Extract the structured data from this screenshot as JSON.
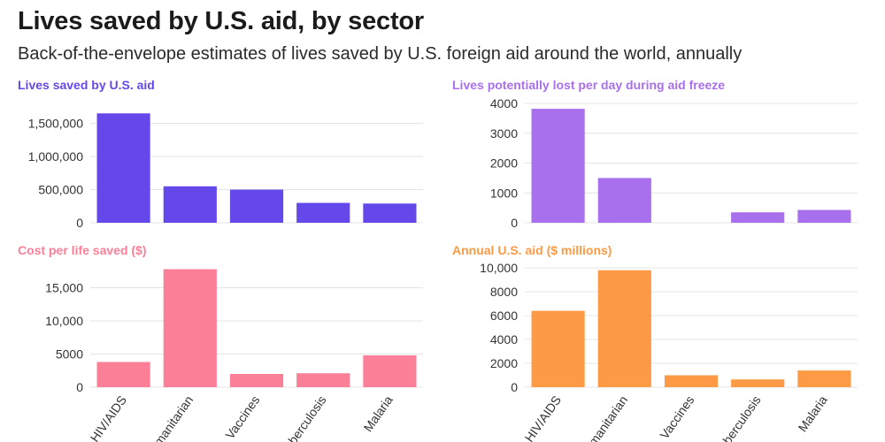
{
  "header": {
    "title": "Lives saved by U.S. aid, by sector",
    "subtitle": "Back-of-the-envelope estimates of lives saved by U.S. foreign aid around the world, annually"
  },
  "chart_data": [
    {
      "type": "bar",
      "title": "Lives saved by U.S. aid",
      "color": "#6548ea",
      "categories": [
        "HIV/AIDS",
        "Humanitarian",
        "Vaccines",
        "Tuberculosis",
        "Malaria"
      ],
      "values": [
        1650000,
        550000,
        500000,
        300000,
        290000
      ],
      "ylim": [
        0,
        1800000
      ],
      "yticks": [
        0,
        500000,
        1000000,
        1500000
      ],
      "ytick_labels": [
        "0",
        "500,000",
        "1,000,000",
        "1,500,000"
      ],
      "show_xlabels": false
    },
    {
      "type": "bar",
      "title": "Lives potentially lost per day during aid freeze",
      "color": "#a870ec",
      "categories": [
        "HIV/AIDS",
        "Humanitarian",
        "Vaccines",
        "Tuberculosis",
        "Malaria"
      ],
      "values": [
        3820,
        1500,
        0,
        350,
        430
      ],
      "ylim": [
        0,
        4000
      ],
      "yticks": [
        0,
        1000,
        2000,
        3000,
        4000
      ],
      "ytick_labels": [
        "0",
        "1000",
        "2000",
        "3000",
        "4000"
      ],
      "show_xlabels": false
    },
    {
      "type": "bar",
      "title": "Cost per life saved ($)",
      "color": "#fc7f98",
      "categories": [
        "HIV/AIDS",
        "Humanitarian",
        "Vaccines",
        "Tuberculosis",
        "Malaria"
      ],
      "values": [
        3800,
        17800,
        2000,
        2100,
        4800
      ],
      "ylim": [
        0,
        18000
      ],
      "yticks": [
        0,
        5000,
        10000,
        15000
      ],
      "ytick_labels": [
        "0",
        "5000",
        "10,000",
        "15,000"
      ],
      "show_xlabels": true
    },
    {
      "type": "bar",
      "title": "Annual U.S. aid ($ millions)",
      "color": "#fc9a45",
      "categories": [
        "HIV/AIDS",
        "Humanitarian",
        "Vaccines",
        "Tuberculosis",
        "Malaria"
      ],
      "values": [
        6400,
        9800,
        1000,
        650,
        1400
      ],
      "ylim": [
        0,
        10000
      ],
      "yticks": [
        0,
        2000,
        4000,
        6000,
        8000,
        10000
      ],
      "ytick_labels": [
        "0",
        "2000",
        "4000",
        "6000",
        "8000",
        "10,000"
      ],
      "show_xlabels": true
    }
  ]
}
